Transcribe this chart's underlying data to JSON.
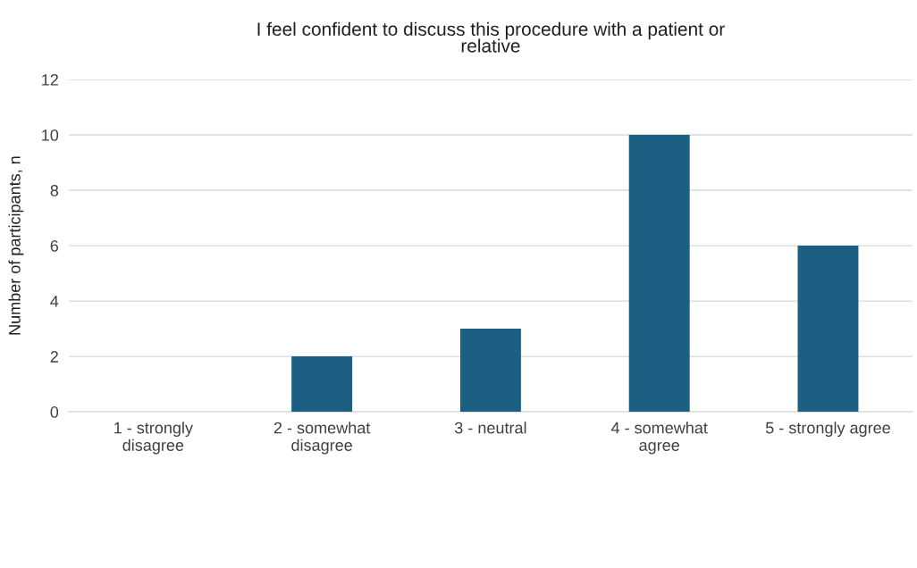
{
  "chart_data": {
    "type": "bar",
    "title": "I feel confident to discuss this procedure with a patient or\nrelative",
    "ylabel": "Number of participants, n",
    "categories": [
      "1 - strongly\ndisagree",
      "2 - somewhat\ndisagree",
      "3 - neutral",
      "4 - somewhat\nagree",
      "5 - strongly agree"
    ],
    "values": [
      0,
      2,
      3,
      10,
      6
    ],
    "color": "#1b5f82",
    "ylim": [
      0,
      12
    ],
    "yticks": [
      0,
      2,
      4,
      6,
      8,
      10,
      12
    ],
    "grid": "y",
    "legend": false
  }
}
